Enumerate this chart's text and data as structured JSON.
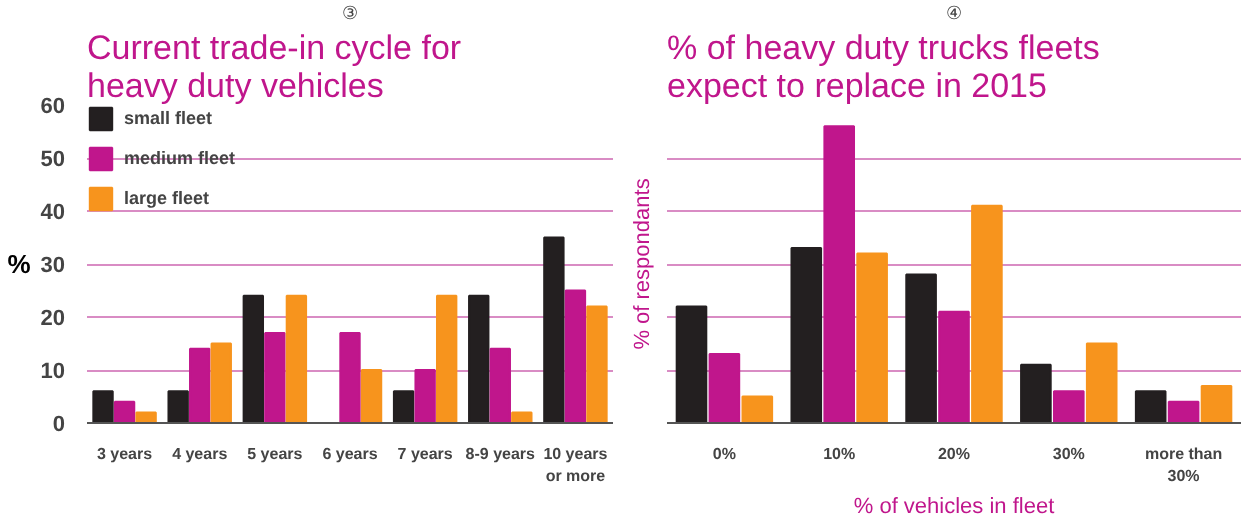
{
  "chart_data": [
    {
      "type": "bar",
      "title": "Current trade-in cycle for heavy duty vehicles",
      "ylabel": "%",
      "annotations": [
        "③"
      ],
      "categories": [
        "3 years",
        "4 years",
        "5 years",
        "6 years",
        "7 years",
        "8-9 years",
        "10 years or more"
      ],
      "series": [
        {
          "name": "small fleet",
          "color": "#231f20",
          "values": [
            6,
            6,
            24,
            0,
            6,
            24,
            35
          ]
        },
        {
          "name": "medium fleet",
          "color": "#c0168c",
          "values": [
            4,
            14,
            17,
            17,
            10,
            14,
            25
          ]
        },
        {
          "name": "large fleet",
          "color": "#f7941d",
          "values": [
            2,
            15,
            24,
            10,
            24,
            2,
            22
          ]
        }
      ],
      "ylim": [
        0,
        60
      ],
      "yticks": [
        0,
        10,
        20,
        30,
        40,
        50,
        60
      ],
      "grid": "y",
      "legend": "top left"
    },
    {
      "type": "bar",
      "title": "% of heavy duty trucks fleets expect to replace in 2015",
      "xlabel": "% of vehicles in fleet",
      "ylabel": "% of respondants",
      "annotations": [
        "④"
      ],
      "categories": [
        "0%",
        "10%",
        "20%",
        "30%",
        "more than 30%"
      ],
      "series": [
        {
          "color": "#231f20",
          "values": [
            22,
            33,
            28,
            11,
            6
          ]
        },
        {
          "color": "#c0168c",
          "values": [
            13,
            56,
            21,
            6,
            4
          ]
        },
        {
          "color": "#f7941d",
          "values": [
            5,
            32,
            41,
            15,
            7
          ]
        }
      ],
      "ylim": [
        0,
        60
      ],
      "yticks": [
        0,
        10,
        20,
        30,
        40,
        50,
        60
      ],
      "grid": "y",
      "tick_labels": "x"
    }
  ]
}
